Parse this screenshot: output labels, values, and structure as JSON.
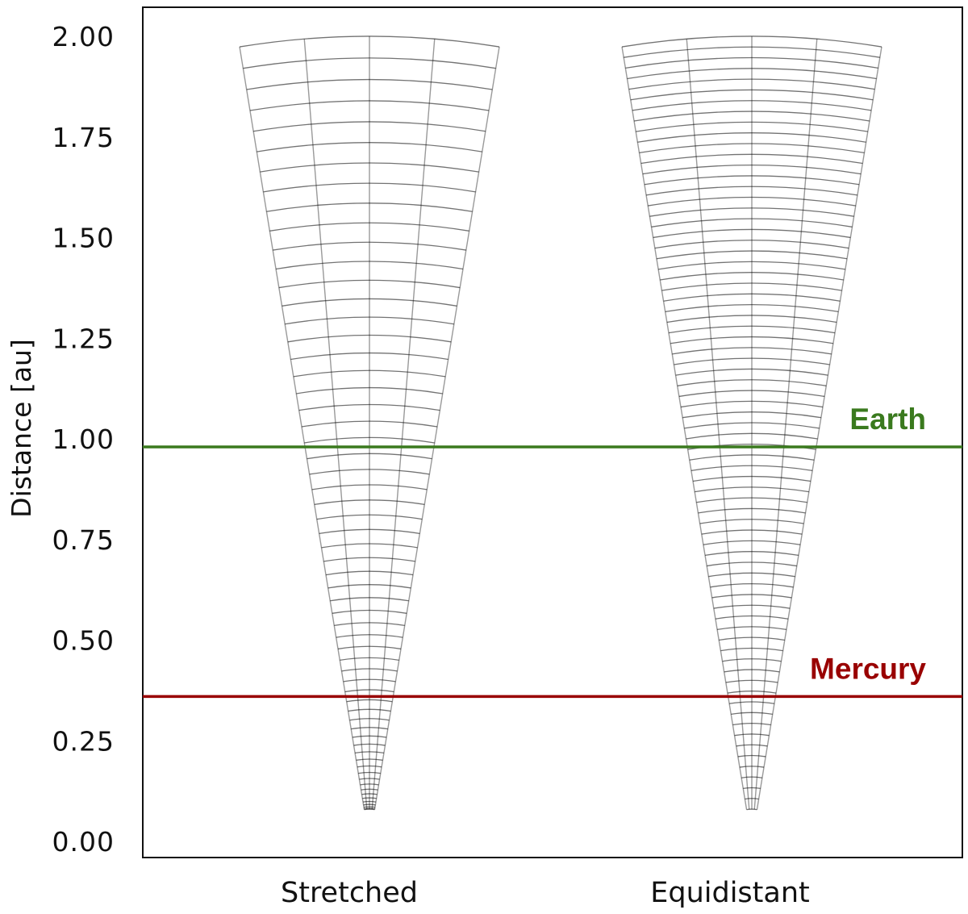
{
  "chart_data": {
    "type": "other",
    "ylabel": "Distance [au]",
    "ylim": [
      0.0,
      2.0
    ],
    "yticks": [
      "0.00",
      "0.25",
      "0.50",
      "0.75",
      "1.00",
      "1.25",
      "1.50",
      "1.75",
      "2.00"
    ],
    "categories": [
      "Stretched",
      "Equidistant"
    ],
    "reference_lines": [
      {
        "name": "Earth",
        "y": 0.98,
        "color": "#3a7a1e"
      },
      {
        "name": "Mercury",
        "y": 0.36,
        "color": "#990000"
      }
    ],
    "grids": [
      {
        "name": "Stretched",
        "r_min": 0.08,
        "r_max": 2.0,
        "radial_spacing": "stretched",
        "n_radial_cells": 60,
        "n_angular_cells": 4,
        "grid_color": "#000000"
      },
      {
        "name": "Equidistant",
        "r_min": 0.08,
        "r_max": 2.0,
        "radial_spacing": "equidistant",
        "n_radial_cells": 72,
        "n_angular_cells": 4,
        "grid_color": "#000000"
      }
    ]
  }
}
